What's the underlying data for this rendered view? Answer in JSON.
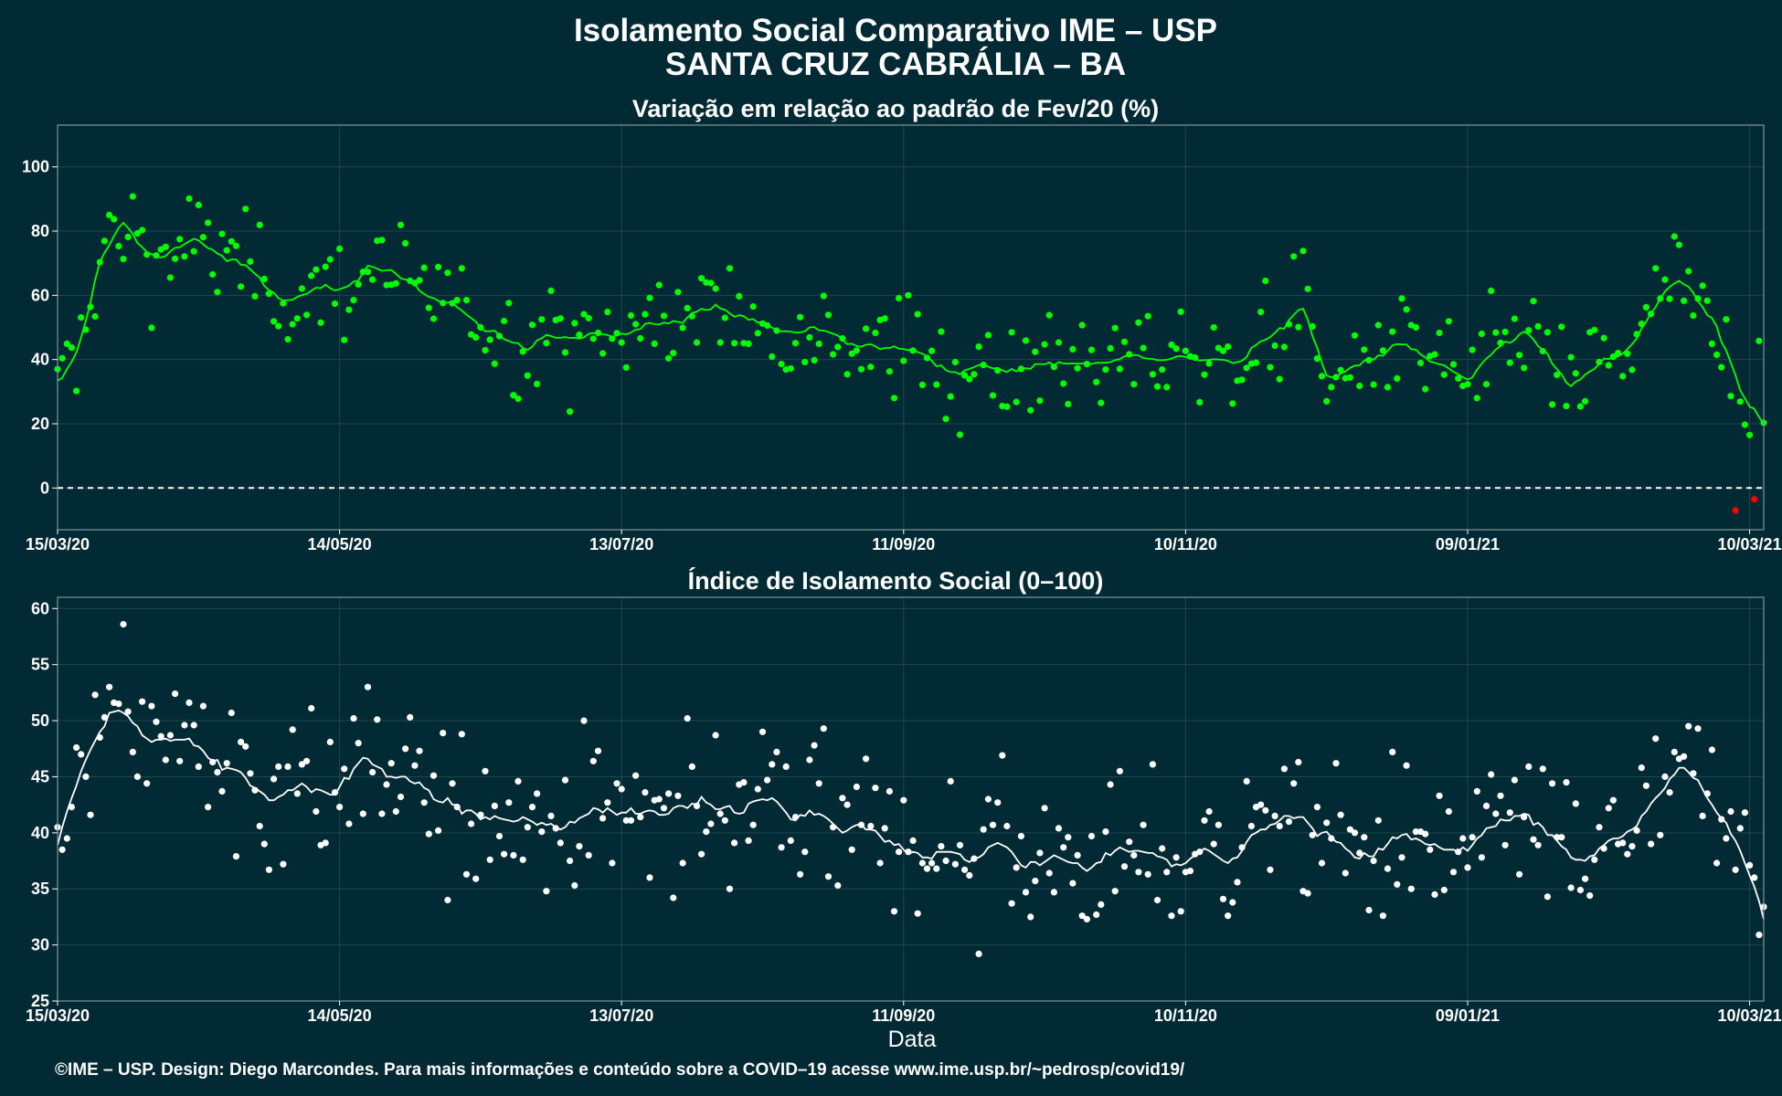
{
  "title_line1": "Isolamento Social Comparativo IME – USP",
  "title_line2": "SANTA CRUZ CABRÁLIA – BA",
  "xlabel": "Data",
  "footer": "©IME – USP. Design: Diego Marcondes. Para mais informações e conteúdo sobre a COVID–19 acesse www.ime.usp.br/~pedrosp/covid19/",
  "colors": {
    "background": "#022a34",
    "panel_border": "#7f969c",
    "grid": "#1c4650",
    "variation_points": "#00ff00",
    "variation_line": "#00ff00",
    "negative": "#ff0000",
    "index_points": "#ffffff",
    "index_line": "#ffffff"
  },
  "chart_data": [
    {
      "type": "scatter",
      "title": "Variação em relação ao padrão de Fev/20 (%)",
      "x_ticks": [
        "15/03/20",
        "14/05/20",
        "13/07/20",
        "11/09/20",
        "10/11/20",
        "09/01/21",
        "10/03/21"
      ],
      "x_range": [
        "15/03/20",
        "13/03/21"
      ],
      "ylim": [
        -13,
        113
      ],
      "y_ticks": [
        0,
        20,
        40,
        60,
        80,
        100
      ],
      "reference_line": 0,
      "series": [
        {
          "role": "daily_points",
          "values": []
        },
        {
          "role": "7_day_moving_average",
          "values": []
        }
      ],
      "notes": "daily values and smoothed line; negative values drawn in red"
    },
    {
      "type": "scatter",
      "title": "Índice de Isolamento Social (0–100)",
      "x_ticks": [
        "15/03/20",
        "14/05/20",
        "13/07/20",
        "11/09/20",
        "10/11/20",
        "09/01/21",
        "10/03/21"
      ],
      "x_range": [
        "15/03/20",
        "13/03/21"
      ],
      "ylim": [
        25,
        61
      ],
      "y_ticks": [
        25,
        30,
        35,
        40,
        45,
        50,
        55,
        60
      ],
      "series": [
        {
          "role": "daily_points",
          "values": []
        },
        {
          "role": "7_day_moving_average",
          "values": []
        }
      ]
    }
  ]
}
